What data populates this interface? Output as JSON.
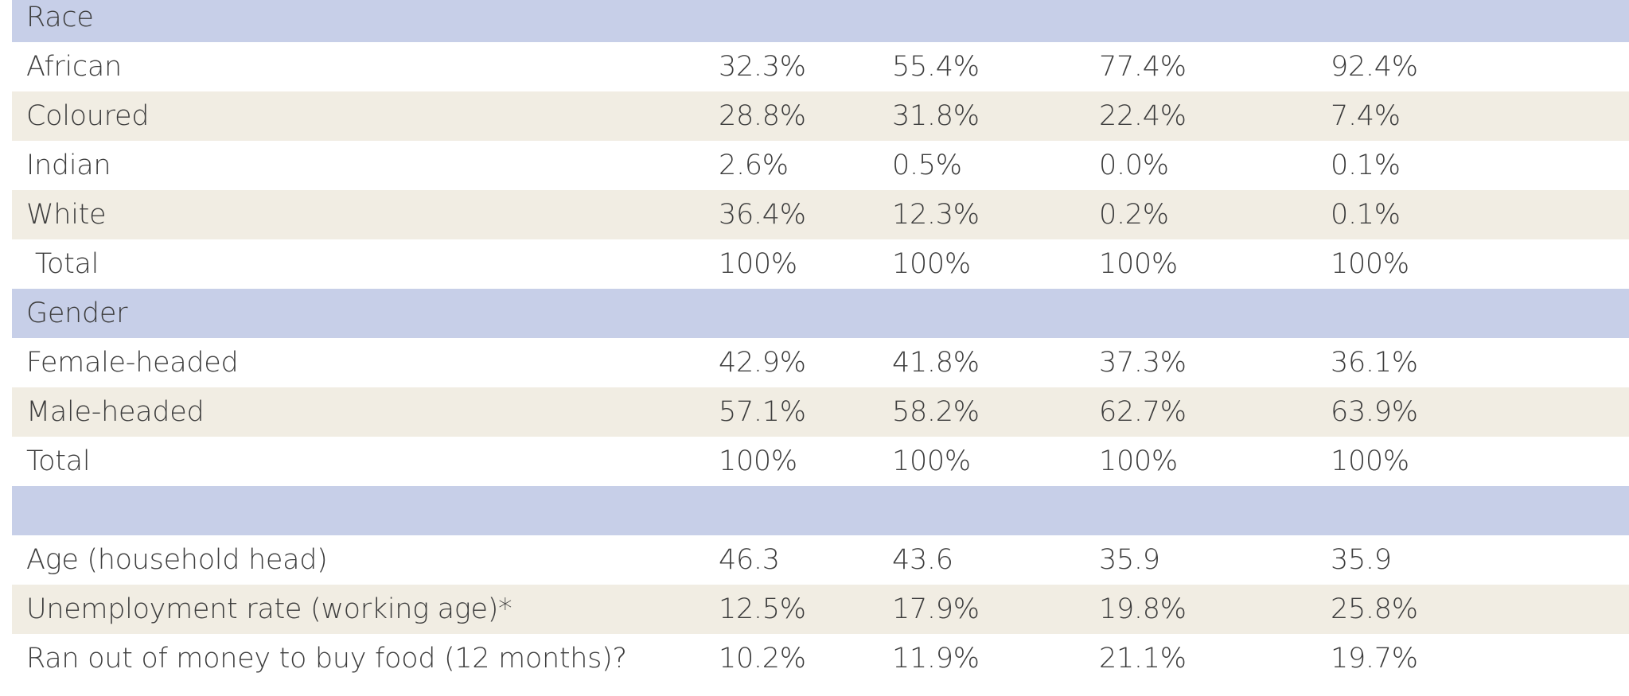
{
  "colors": {
    "section_band": "#c7cfe8",
    "alt_band": "#f1ede3",
    "text": "#3d3d3d"
  },
  "table": {
    "rows": [
      {
        "type": "section",
        "label": "Race",
        "values": [
          "",
          "",
          "",
          ""
        ]
      },
      {
        "type": "data",
        "label": "African",
        "values": [
          "32.3%",
          "55.4%",
          "77.4%",
          "92.4%"
        ]
      },
      {
        "type": "alt",
        "label": "Coloured",
        "values": [
          "28.8%",
          "31.8%",
          "22.4%",
          "7.4%"
        ]
      },
      {
        "type": "data",
        "label": "Indian",
        "values": [
          "2.6%",
          "0.5%",
          "0.0%",
          "0.1%"
        ]
      },
      {
        "type": "alt",
        "label": "White",
        "values": [
          "36.4%",
          "12.3%",
          "0.2%",
          "0.1%"
        ]
      },
      {
        "type": "data",
        "label": " Total",
        "values": [
          "100%",
          "100%",
          "100%",
          "100%"
        ]
      },
      {
        "type": "section",
        "label": "Gender",
        "values": [
          "",
          "",
          "",
          ""
        ]
      },
      {
        "type": "data",
        "label": "Female-headed",
        "values": [
          "42.9%",
          "41.8%",
          "37.3%",
          "36.1%"
        ]
      },
      {
        "type": "alt",
        "label": "Male-headed",
        "values": [
          "57.1%",
          "58.2%",
          "62.7%",
          "63.9%"
        ]
      },
      {
        "type": "data",
        "label": "Total",
        "values": [
          "100%",
          "100%",
          "100%",
          "100%"
        ]
      },
      {
        "type": "section",
        "label": "",
        "values": [
          "",
          "",
          "",
          ""
        ]
      },
      {
        "type": "data",
        "label": "Age (household head)",
        "values": [
          "46.3",
          "43.6",
          "35.9",
          "35.9"
        ]
      },
      {
        "type": "alt",
        "label": "Unemployment rate (working age)*",
        "values": [
          "12.5%",
          "17.9%",
          "19.8%",
          "25.8%"
        ]
      },
      {
        "type": "data",
        "label": "Ran out of money to buy food (12 months)?",
        "values": [
          "10.2%",
          "11.9%",
          "21.1%",
          "19.7%"
        ]
      }
    ]
  }
}
